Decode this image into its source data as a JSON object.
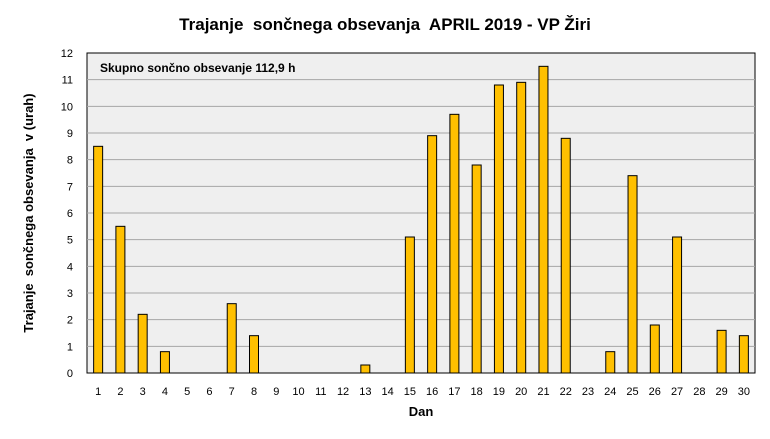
{
  "chart_data": {
    "type": "bar",
    "title": "Trajanje  sončnega obsevanja  APRIL 2019 - VP Žiri",
    "xlabel": "Dan",
    "ylabel": "Trajanje  sončnega obsevanja  v (urah)",
    "annotation": "Skupno sončno obsevanje 112,9 h",
    "categories": [
      "1",
      "2",
      "3",
      "4",
      "5",
      "6",
      "7",
      "8",
      "9",
      "10",
      "11",
      "12",
      "13",
      "14",
      "15",
      "16",
      "17",
      "18",
      "19",
      "20",
      "21",
      "22",
      "23",
      "24",
      "25",
      "26",
      "27",
      "28",
      "29",
      "30"
    ],
    "values": [
      8.5,
      5.5,
      2.2,
      0.8,
      0,
      0,
      2.6,
      1.4,
      0,
      0,
      0,
      0,
      0.3,
      0,
      5.1,
      8.9,
      9.7,
      7.8,
      10.8,
      10.9,
      11.5,
      8.8,
      0,
      0.8,
      7.4,
      1.8,
      5.1,
      0,
      1.6,
      1.4
    ],
    "ylim": [
      0,
      12
    ],
    "yticks": [
      "0",
      "1",
      "2",
      "3",
      "4",
      "5",
      "6",
      "7",
      "8",
      "9",
      "10",
      "11",
      "12"
    ],
    "grid": true,
    "legend": "none",
    "colors": {
      "bar_fill": "#FFC000",
      "bar_stroke": "#000000",
      "plot_background": "#EFEFEF",
      "gridline": "#A6A6A6"
    }
  }
}
